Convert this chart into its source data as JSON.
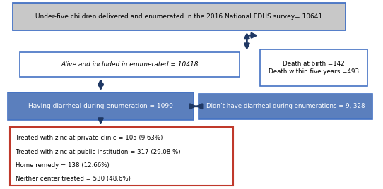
{
  "box1_text": "Under-five children delivered and enumerated in the 2016 National EDHS survey= 10641",
  "box2_text": "Alive and included in enumerated = 10418",
  "box3_text": "Having diarrheal during enumeration = 1090",
  "box4_text": "Didn’t have diarrheal during enumerations = 9, 328",
  "box5_text": "Death at birth =142\nDeath within five years =493",
  "box6_lines": [
    "Treated with zinc at private clinic = 105 (9.63%)",
    "Treated with zinc at public institution = 317 (29.08 %)",
    "Home remedy = 138 (12.66%)",
    "Neither center treated = 530 (48.6%)"
  ],
  "box1_bg": "#c8c8c8",
  "box1_edge": "#4472c4",
  "box2_bg": "#ffffff",
  "box2_edge": "#4472c4",
  "box3_bg": "#5b7fbd",
  "box3_edge": "#4472c4",
  "box4_bg": "#5b7fbd",
  "box4_edge": "#4472c4",
  "box5_bg": "#ffffff",
  "box5_edge": "#4472c4",
  "box6_bg": "#ffffff",
  "box6_edge": "#c0392b",
  "arrow_color": "#1f3864",
  "text_color_dark": "#000000",
  "text_color_light": "#ffffff",
  "figw": 5.42,
  "figh": 2.68,
  "dpi": 100
}
